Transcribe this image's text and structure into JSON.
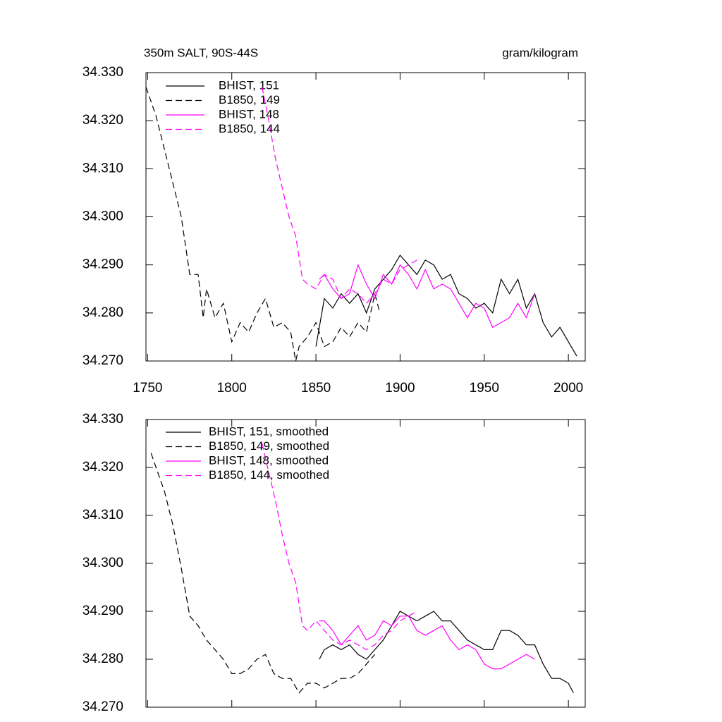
{
  "chart_data": [
    {
      "type": "line",
      "title": "350m SALT, 90S-44S",
      "units": "gram/kilogram",
      "xlim": [
        1749,
        2010
      ],
      "xticks": [
        1750,
        1800,
        1850,
        1900,
        1950,
        2000
      ],
      "show_xtick_labels": true,
      "ylim": [
        34.27,
        34.33
      ],
      "yticks": [
        {
          "value": 34.27,
          "label": "34.270"
        },
        {
          "value": 34.28,
          "label": "34.280"
        },
        {
          "value": 34.29,
          "label": "34.290"
        },
        {
          "value": 34.3,
          "label": "34.300"
        },
        {
          "value": 34.31,
          "label": "34.310"
        },
        {
          "value": 34.32,
          "label": "34.320"
        },
        {
          "value": 34.33,
          "label": "34.330"
        }
      ],
      "series": [
        {
          "name": "BHIST, 151",
          "color": "#000000",
          "dashed": false,
          "x": [
            1850,
            1855,
            1860,
            1865,
            1870,
            1875,
            1880,
            1885,
            1890,
            1895,
            1900,
            1905,
            1910,
            1915,
            1920,
            1925,
            1930,
            1935,
            1940,
            1945,
            1950,
            1955,
            1960,
            1965,
            1970,
            1975,
            1980,
            1985,
            1990,
            1995,
            2000,
            2005
          ],
          "values": [
            34.273,
            34.283,
            34.281,
            34.284,
            34.282,
            34.284,
            34.28,
            34.285,
            34.287,
            34.289,
            34.292,
            34.29,
            34.288,
            34.291,
            34.29,
            34.287,
            34.288,
            34.284,
            34.283,
            34.281,
            34.282,
            34.28,
            34.287,
            34.284,
            34.287,
            34.281,
            34.284,
            34.278,
            34.275,
            34.277,
            34.274,
            34.271
          ]
        },
        {
          "name": "B1850, 149",
          "color": "#000000",
          "dashed": true,
          "x": [
            1749,
            1755,
            1760,
            1765,
            1770,
            1775,
            1780,
            1783,
            1785,
            1790,
            1795,
            1800,
            1805,
            1810,
            1815,
            1820,
            1825,
            1830,
            1835,
            1838,
            1840,
            1845,
            1850,
            1855,
            1860,
            1865,
            1870,
            1875,
            1880,
            1885,
            1888
          ],
          "values": [
            34.327,
            34.321,
            34.314,
            34.307,
            34.3,
            34.288,
            34.288,
            34.279,
            34.285,
            34.279,
            34.282,
            34.274,
            34.278,
            34.276,
            34.28,
            34.283,
            34.277,
            34.278,
            34.276,
            34.27,
            34.273,
            34.275,
            34.278,
            34.273,
            34.274,
            34.277,
            34.275,
            34.278,
            34.276,
            34.284,
            34.28
          ]
        },
        {
          "name": "BHIST, 148",
          "color": "#ff00ff",
          "dashed": false,
          "x": [
            1852,
            1855,
            1860,
            1865,
            1870,
            1875,
            1880,
            1885,
            1890,
            1895,
            1900,
            1905,
            1910,
            1915,
            1920,
            1925,
            1930,
            1935,
            1940,
            1945,
            1950,
            1955,
            1960,
            1965,
            1970,
            1975,
            1980
          ],
          "values": [
            34.287,
            34.288,
            34.285,
            34.283,
            34.284,
            34.29,
            34.286,
            34.283,
            34.288,
            34.286,
            34.29,
            34.288,
            34.285,
            34.289,
            34.285,
            34.286,
            34.285,
            34.282,
            34.279,
            34.282,
            34.281,
            34.277,
            34.278,
            34.279,
            34.282,
            34.279,
            34.284
          ]
        },
        {
          "name": "B1850, 144",
          "color": "#ff00ff",
          "dashed": true,
          "x": [
            1818,
            1822,
            1826,
            1830,
            1834,
            1838,
            1842,
            1845,
            1850,
            1855,
            1860,
            1865,
            1870,
            1875,
            1880,
            1885,
            1890,
            1895,
            1900,
            1905,
            1910
          ],
          "values": [
            34.327,
            34.32,
            34.312,
            34.306,
            34.3,
            34.296,
            34.287,
            34.286,
            34.285,
            34.288,
            34.287,
            34.283,
            34.285,
            34.284,
            34.282,
            34.284,
            34.287,
            34.286,
            34.289,
            34.29,
            34.291
          ]
        }
      ]
    },
    {
      "type": "line",
      "xlim": [
        1749,
        2010
      ],
      "xticks": [
        1750,
        1800,
        1850,
        1900,
        1950,
        2000
      ],
      "show_xtick_labels": false,
      "ylim": [
        34.27,
        34.33
      ],
      "yticks": [
        {
          "value": 34.27,
          "label": "34.270"
        },
        {
          "value": 34.28,
          "label": "34.280"
        },
        {
          "value": 34.29,
          "label": "34.290"
        },
        {
          "value": 34.3,
          "label": "34.300"
        },
        {
          "value": 34.31,
          "label": "34.310"
        },
        {
          "value": 34.32,
          "label": "34.320"
        },
        {
          "value": 34.33,
          "label": "34.330"
        }
      ],
      "series": [
        {
          "name": "BHIST, 151, smoothed",
          "color": "#000000",
          "dashed": false,
          "x": [
            1852,
            1855,
            1860,
            1865,
            1870,
            1875,
            1880,
            1885,
            1890,
            1895,
            1900,
            1905,
            1910,
            1915,
            1920,
            1925,
            1930,
            1935,
            1940,
            1945,
            1950,
            1955,
            1960,
            1965,
            1970,
            1975,
            1980,
            1985,
            1990,
            1995,
            2000,
            2003
          ],
          "values": [
            34.28,
            34.282,
            34.283,
            34.282,
            34.283,
            34.281,
            34.28,
            34.282,
            34.284,
            34.287,
            34.29,
            34.289,
            34.288,
            34.289,
            34.29,
            34.288,
            34.288,
            34.286,
            34.284,
            34.283,
            34.282,
            34.282,
            34.286,
            34.286,
            34.285,
            34.283,
            34.283,
            34.279,
            34.276,
            34.276,
            34.275,
            34.273
          ]
        },
        {
          "name": "B1850, 149, smoothed",
          "color": "#000000",
          "dashed": true,
          "x": [
            1752,
            1755,
            1760,
            1765,
            1770,
            1775,
            1780,
            1785,
            1790,
            1795,
            1800,
            1805,
            1810,
            1815,
            1820,
            1825,
            1830,
            1835,
            1840,
            1845,
            1850,
            1855,
            1860,
            1865,
            1870,
            1875,
            1880,
            1885
          ],
          "values": [
            34.323,
            34.32,
            34.315,
            34.308,
            34.299,
            34.289,
            34.287,
            34.284,
            34.282,
            34.28,
            34.277,
            34.277,
            34.278,
            34.28,
            34.281,
            34.277,
            34.276,
            34.276,
            34.273,
            34.275,
            34.275,
            34.274,
            34.275,
            34.276,
            34.276,
            34.277,
            34.279,
            34.281
          ]
        },
        {
          "name": "BHIST, 148, smoothed",
          "color": "#ff00ff",
          "dashed": false,
          "x": [
            1852,
            1855,
            1860,
            1865,
            1870,
            1875,
            1880,
            1885,
            1890,
            1895,
            1900,
            1905,
            1910,
            1915,
            1920,
            1925,
            1930,
            1935,
            1940,
            1945,
            1950,
            1955,
            1960,
            1965,
            1970,
            1975,
            1980
          ],
          "values": [
            34.288,
            34.288,
            34.286,
            34.283,
            34.285,
            34.287,
            34.284,
            34.285,
            34.288,
            34.287,
            34.289,
            34.289,
            34.286,
            34.285,
            34.286,
            34.287,
            34.284,
            34.282,
            34.283,
            34.282,
            34.279,
            34.278,
            34.278,
            34.279,
            34.28,
            34.281,
            34.28
          ]
        },
        {
          "name": "B1850, 144, smoothed",
          "color": "#ff00ff",
          "dashed": true,
          "x": [
            1818,
            1822,
            1826,
            1830,
            1834,
            1838,
            1842,
            1845,
            1850,
            1855,
            1860,
            1865,
            1870,
            1875,
            1880,
            1885,
            1890,
            1895,
            1900,
            1905,
            1910
          ],
          "values": [
            34.325,
            34.319,
            34.313,
            34.306,
            34.3,
            34.296,
            34.287,
            34.286,
            34.288,
            34.286,
            34.284,
            34.283,
            34.284,
            34.283,
            34.282,
            34.283,
            34.285,
            34.286,
            34.288,
            34.289,
            34.29
          ]
        }
      ]
    }
  ]
}
